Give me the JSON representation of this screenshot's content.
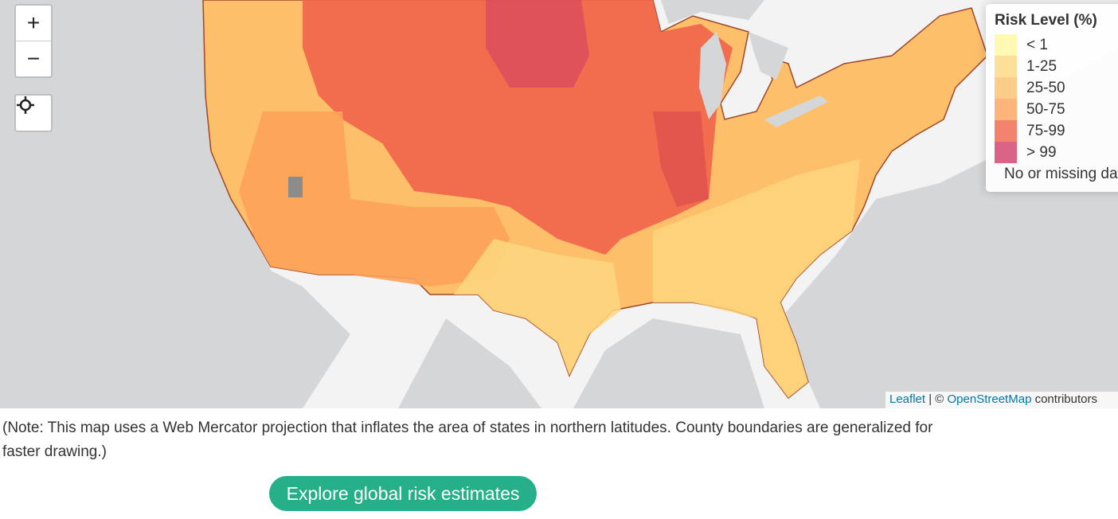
{
  "map": {
    "controls": {
      "zoom_in": "+",
      "zoom_out": "−"
    },
    "legend": {
      "title": "Risk Level (%)",
      "items": [
        {
          "label": "< 1",
          "color": "#fff7a0"
        },
        {
          "label": "1-25",
          "color": "#fdd780"
        },
        {
          "label": "25-50",
          "color": "#fdbf6a"
        },
        {
          "label": "50-75",
          "color": "#fca25a"
        },
        {
          "label": "75-99",
          "color": "#f0644a"
        },
        {
          "label": "> 99",
          "color": "#d23c66"
        },
        {
          "label": "No or missing data",
          "color": "#8c8c8c"
        }
      ]
    },
    "attribution": {
      "leaflet": "Leaflet",
      "separator": "| ©",
      "osm": "OpenStreetMap",
      "suffix": "contributors"
    }
  },
  "note": "(Note: This map uses a Web Mercator projection that inflates the area of states in northern latitudes. County boundaries are generalized for faster drawing.)",
  "button": "Explore global risk estimates"
}
